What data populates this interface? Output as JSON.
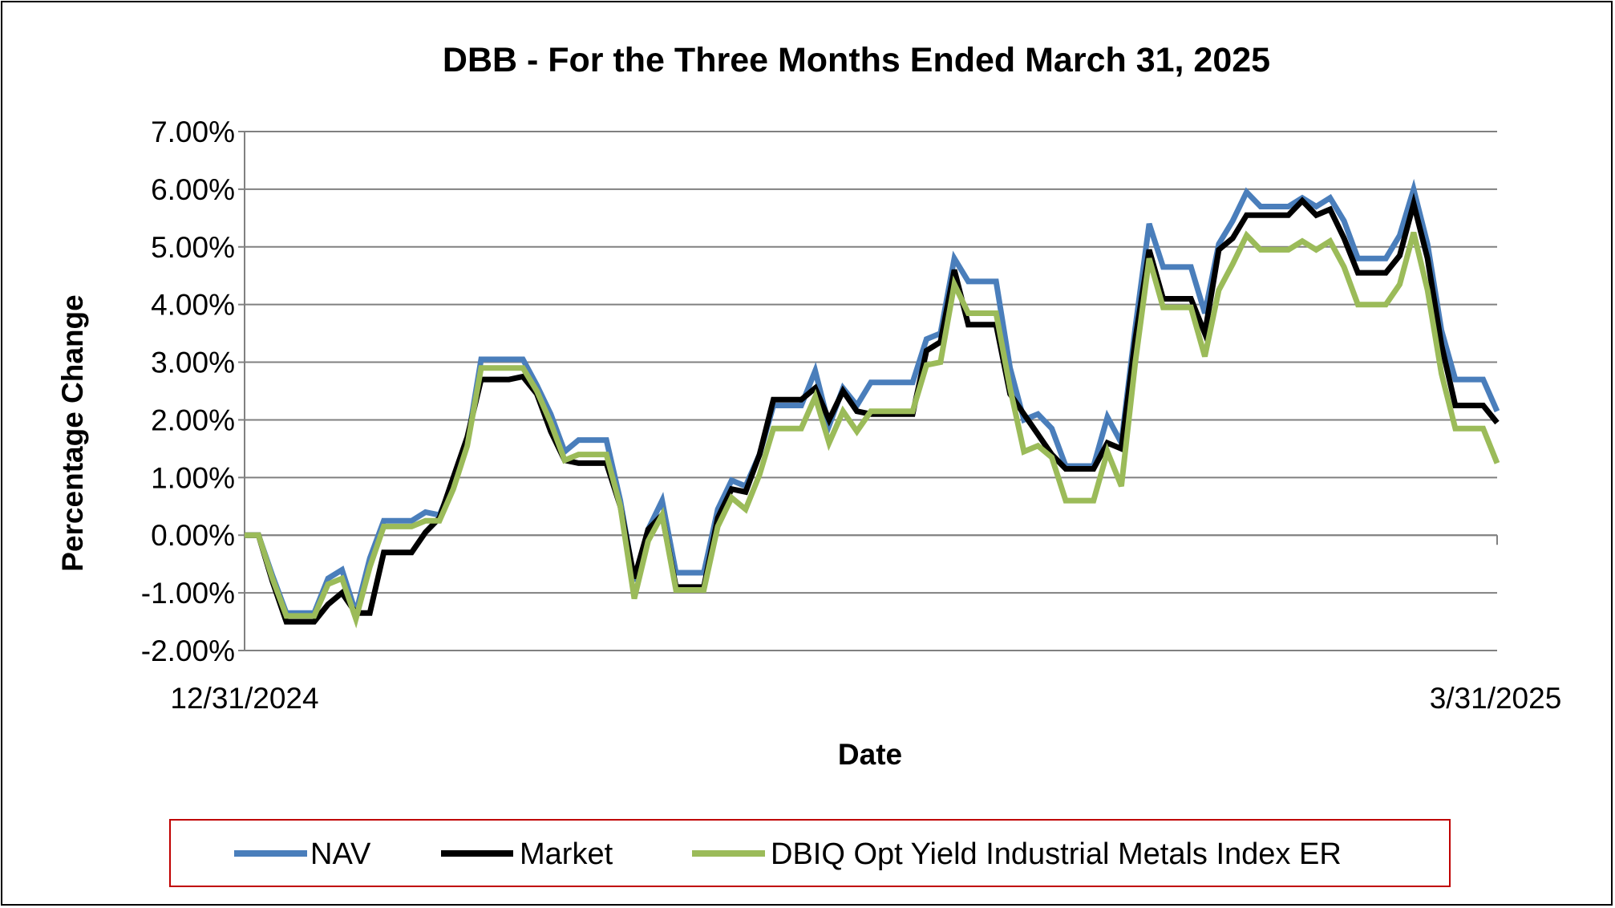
{
  "chart_data": {
    "type": "line",
    "title": "DBB - For the Three Months Ended March 31, 2025",
    "xlabel": "Date",
    "ylabel": "Percentage Change",
    "x_tick_labels": [
      "12/31/2024",
      "3/31/2025"
    ],
    "y_tick_labels": [
      "7.00%",
      "6.00%",
      "5.00%",
      "4.00%",
      "3.00%",
      "2.00%",
      "1.00%",
      "0.00%",
      "-1.00%",
      "-2.00%"
    ],
    "ylim": [
      -2,
      7
    ],
    "y_unit": "%",
    "grid": "horizontal",
    "legend_position": "bottom",
    "series": [
      {
        "name": "NAV",
        "color": "#4a7ebb",
        "values": [
          0,
          0,
          -0.7,
          -1.35,
          -1.35,
          -1.35,
          -0.75,
          -0.6,
          -1.35,
          -0.4,
          0.25,
          0.25,
          0.25,
          0.4,
          0.35,
          0.9,
          1.6,
          3.05,
          3.05,
          3.05,
          3.05,
          2.6,
          2.1,
          1.45,
          1.65,
          1.65,
          1.65,
          0.6,
          -0.8,
          0.1,
          0.6,
          -0.65,
          -0.65,
          -0.65,
          0.45,
          0.95,
          0.85,
          1.4,
          2.25,
          2.25,
          2.25,
          2.85,
          1.9,
          2.55,
          2.25,
          2.65,
          2.65,
          2.65,
          2.65,
          3.4,
          3.5,
          4.8,
          4.4,
          4.4,
          4.4,
          2.9,
          2.0,
          2.1,
          1.85,
          1.2,
          1.2,
          1.2,
          2.05,
          1.6,
          3.6,
          5.4,
          4.65,
          4.65,
          4.65,
          3.85,
          5.05,
          5.45,
          5.95,
          5.7,
          5.7,
          5.7,
          5.85,
          5.7,
          5.85,
          5.45,
          4.8,
          4.8,
          4.8,
          5.2,
          6.0,
          5.05,
          3.55,
          2.7,
          2.7,
          2.7,
          2.15
        ]
      },
      {
        "name": "Market",
        "color": "#000000",
        "values": [
          0,
          0,
          -0.8,
          -1.5,
          -1.5,
          -1.5,
          -1.2,
          -1.0,
          -1.35,
          -1.35,
          -0.3,
          -0.3,
          -0.3,
          0.05,
          0.3,
          1.0,
          1.7,
          2.7,
          2.7,
          2.7,
          2.75,
          2.45,
          1.8,
          1.3,
          1.25,
          1.25,
          1.25,
          0.5,
          -0.75,
          0.1,
          0.35,
          -0.9,
          -0.9,
          -0.9,
          0.3,
          0.8,
          0.75,
          1.4,
          2.35,
          2.35,
          2.35,
          2.55,
          2.0,
          2.5,
          2.15,
          2.1,
          2.1,
          2.1,
          2.1,
          3.2,
          3.35,
          4.6,
          3.65,
          3.65,
          3.65,
          2.45,
          2.1,
          1.75,
          1.4,
          1.15,
          1.15,
          1.15,
          1.6,
          1.5,
          3.4,
          4.95,
          4.1,
          4.1,
          4.1,
          3.5,
          4.95,
          5.15,
          5.55,
          5.55,
          5.55,
          5.55,
          5.8,
          5.55,
          5.65,
          5.15,
          4.55,
          4.55,
          4.55,
          4.85,
          5.75,
          4.8,
          3.3,
          2.25,
          2.25,
          2.25,
          1.95
        ]
      },
      {
        "name": "DBIQ Opt Yield Industrial Metals Index ER",
        "color": "#9bbb59",
        "values": [
          0,
          0,
          -0.75,
          -1.4,
          -1.4,
          -1.4,
          -0.85,
          -0.75,
          -1.45,
          -0.55,
          0.15,
          0.15,
          0.15,
          0.25,
          0.25,
          0.8,
          1.55,
          2.9,
          2.9,
          2.9,
          2.9,
          2.5,
          1.95,
          1.3,
          1.4,
          1.4,
          1.4,
          0.5,
          -1.1,
          -0.1,
          0.35,
          -0.95,
          -0.95,
          -0.95,
          0.15,
          0.65,
          0.45,
          1.05,
          1.85,
          1.85,
          1.85,
          2.4,
          1.6,
          2.15,
          1.8,
          2.15,
          2.15,
          2.15,
          2.15,
          2.95,
          3.0,
          4.35,
          3.85,
          3.85,
          3.85,
          2.55,
          1.45,
          1.55,
          1.35,
          0.6,
          0.6,
          0.6,
          1.45,
          0.85,
          3.0,
          4.8,
          3.95,
          3.95,
          3.95,
          3.1,
          4.25,
          4.7,
          5.2,
          4.95,
          4.95,
          4.95,
          5.1,
          4.95,
          5.1,
          4.65,
          4.0,
          4.0,
          4.0,
          4.35,
          5.25,
          4.25,
          2.8,
          1.85,
          1.85,
          1.85,
          1.25
        ]
      }
    ]
  }
}
